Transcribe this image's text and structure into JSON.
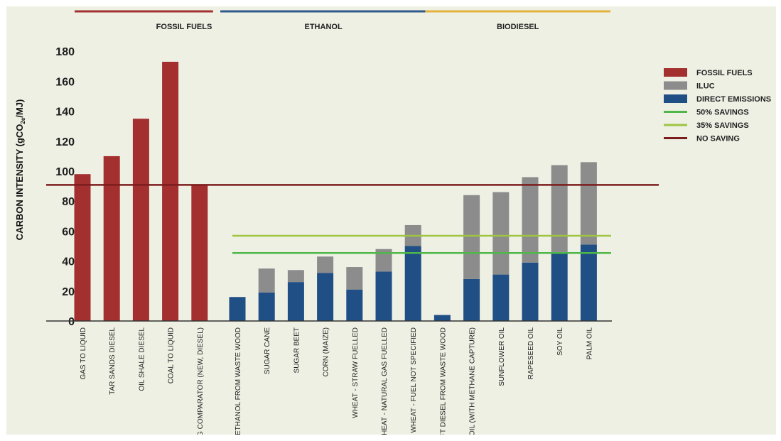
{
  "colors": {
    "fossil": "#a3302f",
    "iluc": "#8c8c8c",
    "direct": "#1f4f85",
    "savings50": "#4fb748",
    "savings35": "#9ec441",
    "no_saving": "#7c1d1d",
    "ethanol_group": "#2d5a8a",
    "biodiesel_group": "#e3b23c",
    "background": "#eef0e4"
  },
  "chart_data": {
    "type": "bar",
    "ylabel_main": "CARBON INTENSITY (gCO",
    "ylabel_sub": "2e",
    "ylabel_end": "/MJ)",
    "ylim": [
      0,
      180
    ],
    "yticks": [
      "0",
      "20",
      "40",
      "60",
      "80",
      "100",
      "120",
      "140",
      "160",
      "180"
    ],
    "groups": [
      {
        "label": "FOSSIL FUELS",
        "color_key": "fossil",
        "first": 0,
        "last": 4
      },
      {
        "label": "ETHANOL",
        "color_key": "ethanol_group",
        "first": 5,
        "last": 11
      },
      {
        "label": "BIODIESEL",
        "color_key": "biodiesel_group",
        "first": 12,
        "last": 17
      }
    ],
    "categories": [
      "GAS TO LIQUID",
      "TAR SANDS DIESEL",
      "OIL SHALE DIESEL",
      "COAL TO LIQUID",
      "GHG COMPARATOR (NEW, DIESEL)",
      "ETHANOL FROM WASTE WOOD",
      "SUGAR CANE",
      "SUGAR BEET",
      "CORN (MAIZE)",
      "WHEAT - STRAW FUELLED",
      "WHEAT - NATURAL GAS FUELLED",
      "WHEAT - FUEL NOT SPECIFIED",
      "FT DIESEL FROM WASTE WOOD",
      "PALM OIL (WITH METHANE CAPTURE)",
      "SUNFLOWER OIL",
      "RAPESEED OIL",
      "SOY OIL",
      "PALM OIL"
    ],
    "series": [
      {
        "name": "FOSSIL FUELS",
        "color_key": "fossil",
        "values": [
          98,
          110,
          135,
          173,
          91,
          0,
          0,
          0,
          0,
          0,
          0,
          0,
          0,
          0,
          0,
          0,
          0,
          0
        ]
      },
      {
        "name": "DIRECT EMISSIONS",
        "color_key": "direct",
        "values": [
          0,
          0,
          0,
          0,
          0,
          16,
          19,
          26,
          32,
          21,
          33,
          50,
          4,
          28,
          31,
          39,
          46,
          51
        ]
      },
      {
        "name": "ILUC",
        "color_key": "iluc",
        "values": [
          0,
          0,
          0,
          0,
          0,
          0,
          16,
          8,
          11,
          15,
          15,
          14,
          0,
          56,
          55,
          57,
          58,
          55
        ]
      }
    ],
    "reference_lines": [
      {
        "name": "NO SAVING",
        "value": 90.8,
        "color_key": "no_saving"
      },
      {
        "name": "35% SAVINGS",
        "value": 56.9,
        "color_key": "savings35"
      },
      {
        "name": "50% SAVINGS",
        "value": 45.4,
        "color_key": "savings50"
      }
    ],
    "legend": {
      "placement": "right",
      "items": [
        {
          "label": "FOSSIL FUELS",
          "kind": "box",
          "color_key": "fossil"
        },
        {
          "label": "ILUC",
          "kind": "box",
          "color_key": "iluc"
        },
        {
          "label": "DIRECT EMISSIONS",
          "kind": "box",
          "color_key": "direct"
        },
        {
          "label": "50% SAVINGS",
          "kind": "line",
          "color_key": "savings50"
        },
        {
          "label": "35% SAVINGS",
          "kind": "line",
          "color_key": "savings35"
        },
        {
          "label": "NO SAVING",
          "kind": "line",
          "color_key": "no_saving"
        }
      ]
    }
  }
}
